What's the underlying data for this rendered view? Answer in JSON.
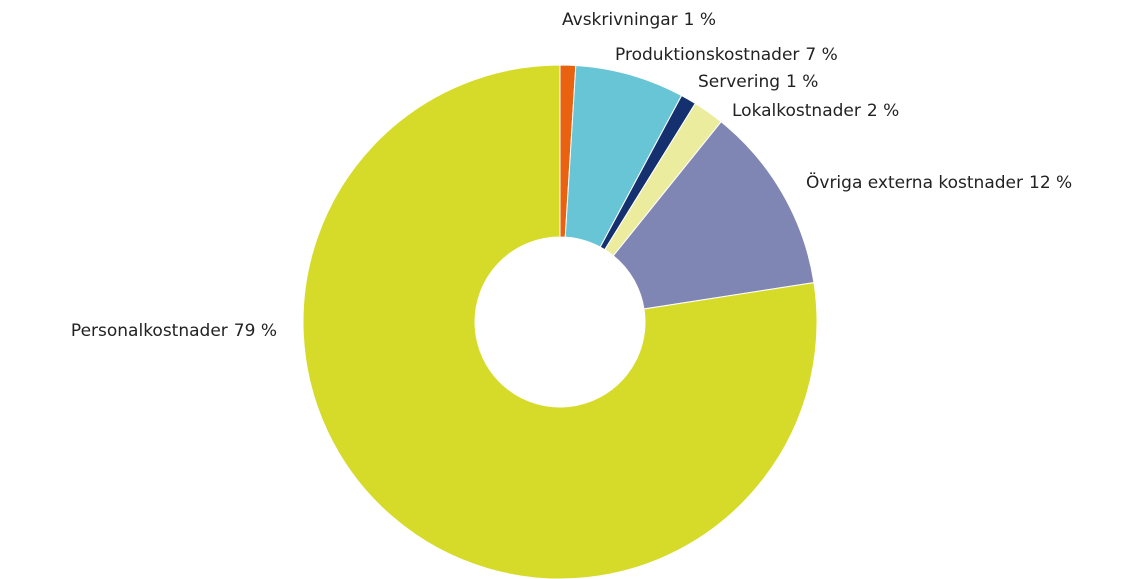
{
  "chart_data": {
    "type": "donut",
    "categories": [
      "Avskrivningar",
      "Produktionskostnader",
      "Servering",
      "Lokalkostnader",
      "Övriga externa kostnader",
      "Personalkostnader"
    ],
    "values": [
      1,
      7,
      1,
      2,
      12,
      79
    ],
    "value_labels": [
      "1 %",
      "7 %",
      "1 %",
      "2 %",
      "12 %",
      "79 %"
    ],
    "colors": [
      "#e8620f",
      "#67c5d6",
      "#14306e",
      "#ecec9f",
      "#8086b3",
      "#d6db29"
    ]
  }
}
